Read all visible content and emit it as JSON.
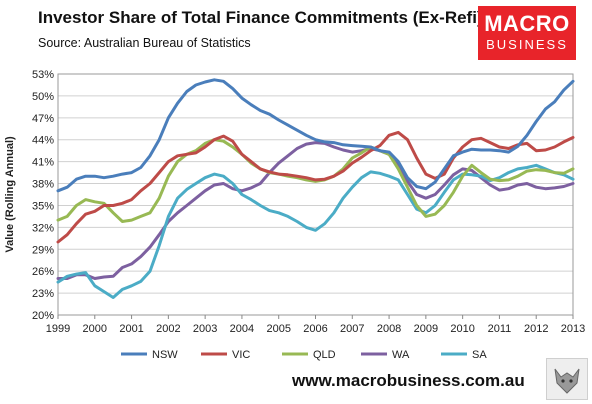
{
  "title": "Investor Share of Total Finance Commitments (Ex-Refi)",
  "subtitle": "Source: Australian Bureau of Statistics",
  "logo": {
    "line1": "MACRO",
    "line2": "BUSINESS"
  },
  "website": "www.macrobusiness.com.au",
  "chart_data": {
    "type": "line",
    "ylabel": "Value (Rolling Annual)",
    "xlabel": "",
    "x_ticks": [
      1999,
      2000,
      2001,
      2002,
      2003,
      2004,
      2005,
      2006,
      2007,
      2008,
      2009,
      2010,
      2011,
      2012,
      2013
    ],
    "xlim": [
      1999,
      2013
    ],
    "y_ticks": [
      20,
      23,
      26,
      29,
      32,
      35,
      38,
      41,
      44,
      47,
      50,
      53
    ],
    "y_tick_labels": [
      "20%",
      "23%",
      "26%",
      "29%",
      "32%",
      "35%",
      "38%",
      "41%",
      "44%",
      "47%",
      "50%",
      "53%"
    ],
    "ylim": [
      20,
      53
    ],
    "grid": "horizontal",
    "legend_position": "bottom",
    "series": [
      {
        "name": "NSW",
        "color": "#4a7ebb",
        "points": [
          [
            1999.0,
            37.0
          ],
          [
            1999.25,
            37.5
          ],
          [
            1999.5,
            38.6
          ],
          [
            1999.75,
            39.0
          ],
          [
            2000.0,
            39.0
          ],
          [
            2000.25,
            38.8
          ],
          [
            2000.5,
            39.0
          ],
          [
            2000.75,
            39.3
          ],
          [
            2001.0,
            39.5
          ],
          [
            2001.25,
            40.2
          ],
          [
            2001.5,
            41.8
          ],
          [
            2001.75,
            44.0
          ],
          [
            2002.0,
            47.0
          ],
          [
            2002.25,
            49.0
          ],
          [
            2002.5,
            50.6
          ],
          [
            2002.75,
            51.5
          ],
          [
            2003.0,
            51.9
          ],
          [
            2003.25,
            52.2
          ],
          [
            2003.5,
            52.0
          ],
          [
            2003.75,
            51.0
          ],
          [
            2004.0,
            49.7
          ],
          [
            2004.25,
            48.8
          ],
          [
            2004.5,
            48.0
          ],
          [
            2004.75,
            47.5
          ],
          [
            2005.0,
            46.7
          ],
          [
            2005.25,
            46.0
          ],
          [
            2005.5,
            45.3
          ],
          [
            2005.75,
            44.6
          ],
          [
            2006.0,
            44.0
          ],
          [
            2006.25,
            43.7
          ],
          [
            2006.5,
            43.6
          ],
          [
            2006.75,
            43.3
          ],
          [
            2007.0,
            43.2
          ],
          [
            2007.25,
            43.1
          ],
          [
            2007.5,
            43.0
          ],
          [
            2007.75,
            42.5
          ],
          [
            2008.0,
            42.3
          ],
          [
            2008.25,
            41.0
          ],
          [
            2008.5,
            38.8
          ],
          [
            2008.75,
            37.6
          ],
          [
            2009.0,
            37.3
          ],
          [
            2009.25,
            38.2
          ],
          [
            2009.5,
            40.0
          ],
          [
            2009.75,
            41.8
          ],
          [
            2010.0,
            42.3
          ],
          [
            2010.25,
            42.7
          ],
          [
            2010.5,
            42.6
          ],
          [
            2010.75,
            42.6
          ],
          [
            2011.0,
            42.5
          ],
          [
            2011.25,
            42.3
          ],
          [
            2011.5,
            43.1
          ],
          [
            2011.75,
            44.6
          ],
          [
            2012.0,
            46.5
          ],
          [
            2012.25,
            48.2
          ],
          [
            2012.5,
            49.2
          ],
          [
            2012.75,
            50.8
          ],
          [
            2013.0,
            52.0
          ]
        ]
      },
      {
        "name": "VIC",
        "color": "#be4b48",
        "points": [
          [
            1999.0,
            30.0
          ],
          [
            1999.25,
            31.0
          ],
          [
            1999.5,
            32.5
          ],
          [
            1999.75,
            33.8
          ],
          [
            2000.0,
            34.2
          ],
          [
            2000.25,
            35.0
          ],
          [
            2000.5,
            35.0
          ],
          [
            2000.75,
            35.3
          ],
          [
            2001.0,
            35.8
          ],
          [
            2001.25,
            37.0
          ],
          [
            2001.5,
            38.0
          ],
          [
            2001.75,
            39.5
          ],
          [
            2002.0,
            41.0
          ],
          [
            2002.25,
            41.8
          ],
          [
            2002.5,
            42.0
          ],
          [
            2002.75,
            42.2
          ],
          [
            2003.0,
            43.0
          ],
          [
            2003.25,
            44.0
          ],
          [
            2003.5,
            44.5
          ],
          [
            2003.75,
            43.8
          ],
          [
            2004.0,
            42.0
          ],
          [
            2004.25,
            41.0
          ],
          [
            2004.5,
            40.0
          ],
          [
            2004.75,
            39.6
          ],
          [
            2005.0,
            39.3
          ],
          [
            2005.25,
            39.2
          ],
          [
            2005.5,
            39.0
          ],
          [
            2005.75,
            38.8
          ],
          [
            2006.0,
            38.5
          ],
          [
            2006.25,
            38.6
          ],
          [
            2006.5,
            39.0
          ],
          [
            2006.75,
            39.7
          ],
          [
            2007.0,
            40.8
          ],
          [
            2007.25,
            41.6
          ],
          [
            2007.5,
            42.5
          ],
          [
            2007.75,
            43.2
          ],
          [
            2008.0,
            44.6
          ],
          [
            2008.25,
            45.0
          ],
          [
            2008.5,
            44.0
          ],
          [
            2008.75,
            41.5
          ],
          [
            2009.0,
            39.3
          ],
          [
            2009.25,
            38.7
          ],
          [
            2009.5,
            39.3
          ],
          [
            2009.75,
            41.5
          ],
          [
            2010.0,
            43.0
          ],
          [
            2010.25,
            44.0
          ],
          [
            2010.5,
            44.2
          ],
          [
            2010.75,
            43.6
          ],
          [
            2011.0,
            43.0
          ],
          [
            2011.25,
            42.8
          ],
          [
            2011.5,
            43.3
          ],
          [
            2011.75,
            43.5
          ],
          [
            2012.0,
            42.5
          ],
          [
            2012.25,
            42.6
          ],
          [
            2012.5,
            43.0
          ],
          [
            2012.75,
            43.7
          ],
          [
            2013.0,
            44.3
          ]
        ]
      },
      {
        "name": "QLD",
        "color": "#98b954",
        "points": [
          [
            1999.0,
            33.0
          ],
          [
            1999.25,
            33.5
          ],
          [
            1999.5,
            35.0
          ],
          [
            1999.75,
            35.8
          ],
          [
            2000.0,
            35.5
          ],
          [
            2000.25,
            35.3
          ],
          [
            2000.5,
            34.0
          ],
          [
            2000.75,
            32.8
          ],
          [
            2001.0,
            33.0
          ],
          [
            2001.25,
            33.5
          ],
          [
            2001.5,
            34.0
          ],
          [
            2001.75,
            36.0
          ],
          [
            2002.0,
            39.0
          ],
          [
            2002.25,
            41.0
          ],
          [
            2002.5,
            42.0
          ],
          [
            2002.75,
            42.5
          ],
          [
            2003.0,
            43.5
          ],
          [
            2003.25,
            44.0
          ],
          [
            2003.5,
            43.8
          ],
          [
            2003.75,
            43.0
          ],
          [
            2004.0,
            42.0
          ],
          [
            2004.25,
            40.8
          ],
          [
            2004.5,
            40.0
          ],
          [
            2004.75,
            39.5
          ],
          [
            2005.0,
            39.3
          ],
          [
            2005.25,
            39.0
          ],
          [
            2005.5,
            38.8
          ],
          [
            2005.75,
            38.5
          ],
          [
            2006.0,
            38.3
          ],
          [
            2006.25,
            38.5
          ],
          [
            2006.5,
            39.0
          ],
          [
            2006.75,
            40.0
          ],
          [
            2007.0,
            41.5
          ],
          [
            2007.25,
            42.2
          ],
          [
            2007.5,
            43.0
          ],
          [
            2007.75,
            42.5
          ],
          [
            2008.0,
            42.0
          ],
          [
            2008.25,
            40.0
          ],
          [
            2008.5,
            37.5
          ],
          [
            2008.75,
            35.0
          ],
          [
            2009.0,
            33.5
          ],
          [
            2009.25,
            33.8
          ],
          [
            2009.5,
            35.0
          ],
          [
            2009.75,
            36.8
          ],
          [
            2010.0,
            39.0
          ],
          [
            2010.25,
            40.5
          ],
          [
            2010.5,
            39.5
          ],
          [
            2010.75,
            38.6
          ],
          [
            2011.0,
            38.4
          ],
          [
            2011.25,
            38.5
          ],
          [
            2011.5,
            39.0
          ],
          [
            2011.75,
            39.7
          ],
          [
            2012.0,
            39.9
          ],
          [
            2012.25,
            39.8
          ],
          [
            2012.5,
            39.5
          ],
          [
            2012.75,
            39.4
          ],
          [
            2013.0,
            40.0
          ]
        ]
      },
      {
        "name": "WA",
        "color": "#7d60a0",
        "points": [
          [
            1999.0,
            25.0
          ],
          [
            1999.25,
            25.0
          ],
          [
            1999.5,
            25.5
          ],
          [
            1999.75,
            25.5
          ],
          [
            2000.0,
            25.0
          ],
          [
            2000.25,
            25.2
          ],
          [
            2000.5,
            25.3
          ],
          [
            2000.75,
            26.5
          ],
          [
            2001.0,
            27.0
          ],
          [
            2001.25,
            28.0
          ],
          [
            2001.5,
            29.3
          ],
          [
            2001.75,
            31.0
          ],
          [
            2002.0,
            32.8
          ],
          [
            2002.25,
            34.0
          ],
          [
            2002.5,
            35.0
          ],
          [
            2002.75,
            36.0
          ],
          [
            2003.0,
            37.0
          ],
          [
            2003.25,
            37.8
          ],
          [
            2003.5,
            38.0
          ],
          [
            2003.75,
            37.3
          ],
          [
            2004.0,
            37.0
          ],
          [
            2004.25,
            37.4
          ],
          [
            2004.5,
            38.0
          ],
          [
            2004.75,
            39.5
          ],
          [
            2005.0,
            40.8
          ],
          [
            2005.25,
            41.8
          ],
          [
            2005.5,
            42.8
          ],
          [
            2005.75,
            43.4
          ],
          [
            2006.0,
            43.6
          ],
          [
            2006.25,
            43.5
          ],
          [
            2006.5,
            43.0
          ],
          [
            2006.75,
            42.6
          ],
          [
            2007.0,
            42.3
          ],
          [
            2007.25,
            42.5
          ],
          [
            2007.5,
            42.8
          ],
          [
            2007.75,
            42.5
          ],
          [
            2008.0,
            42.0
          ],
          [
            2008.25,
            40.5
          ],
          [
            2008.5,
            38.3
          ],
          [
            2008.75,
            36.5
          ],
          [
            2009.0,
            36.0
          ],
          [
            2009.25,
            36.5
          ],
          [
            2009.5,
            37.8
          ],
          [
            2009.75,
            39.2
          ],
          [
            2010.0,
            40.0
          ],
          [
            2010.25,
            39.8
          ],
          [
            2010.5,
            38.8
          ],
          [
            2010.75,
            37.8
          ],
          [
            2011.0,
            37.1
          ],
          [
            2011.25,
            37.3
          ],
          [
            2011.5,
            37.8
          ],
          [
            2011.75,
            38.0
          ],
          [
            2012.0,
            37.5
          ],
          [
            2012.25,
            37.3
          ],
          [
            2012.5,
            37.4
          ],
          [
            2012.75,
            37.6
          ],
          [
            2013.0,
            38.0
          ]
        ]
      },
      {
        "name": "SA",
        "color": "#4bacc6",
        "points": [
          [
            1999.0,
            24.5
          ],
          [
            1999.25,
            25.3
          ],
          [
            1999.5,
            25.6
          ],
          [
            1999.75,
            25.8
          ],
          [
            2000.0,
            24.0
          ],
          [
            2000.25,
            23.2
          ],
          [
            2000.5,
            22.4
          ],
          [
            2000.75,
            23.5
          ],
          [
            2001.0,
            24.0
          ],
          [
            2001.25,
            24.6
          ],
          [
            2001.5,
            26.0
          ],
          [
            2001.75,
            29.5
          ],
          [
            2002.0,
            33.5
          ],
          [
            2002.25,
            36.0
          ],
          [
            2002.5,
            37.2
          ],
          [
            2002.75,
            38.0
          ],
          [
            2003.0,
            38.8
          ],
          [
            2003.25,
            39.3
          ],
          [
            2003.5,
            39.0
          ],
          [
            2003.75,
            38.0
          ],
          [
            2004.0,
            36.5
          ],
          [
            2004.25,
            35.8
          ],
          [
            2004.5,
            35.0
          ],
          [
            2004.75,
            34.3
          ],
          [
            2005.0,
            34.0
          ],
          [
            2005.25,
            33.5
          ],
          [
            2005.5,
            32.8
          ],
          [
            2005.75,
            32.0
          ],
          [
            2006.0,
            31.6
          ],
          [
            2006.25,
            32.5
          ],
          [
            2006.5,
            34.0
          ],
          [
            2006.75,
            36.0
          ],
          [
            2007.0,
            37.5
          ],
          [
            2007.25,
            38.8
          ],
          [
            2007.5,
            39.6
          ],
          [
            2007.75,
            39.4
          ],
          [
            2008.0,
            39.0
          ],
          [
            2008.25,
            38.5
          ],
          [
            2008.5,
            36.5
          ],
          [
            2008.75,
            34.5
          ],
          [
            2009.0,
            34.0
          ],
          [
            2009.25,
            35.0
          ],
          [
            2009.5,
            36.8
          ],
          [
            2009.75,
            38.5
          ],
          [
            2010.0,
            39.3
          ],
          [
            2010.25,
            39.2
          ],
          [
            2010.5,
            39.0
          ],
          [
            2010.75,
            38.4
          ],
          [
            2011.0,
            38.8
          ],
          [
            2011.25,
            39.5
          ],
          [
            2011.5,
            40.0
          ],
          [
            2011.75,
            40.2
          ],
          [
            2012.0,
            40.5
          ],
          [
            2012.25,
            40.0
          ],
          [
            2012.5,
            39.5
          ],
          [
            2012.75,
            39.2
          ],
          [
            2013.0,
            38.6
          ]
        ]
      }
    ]
  }
}
